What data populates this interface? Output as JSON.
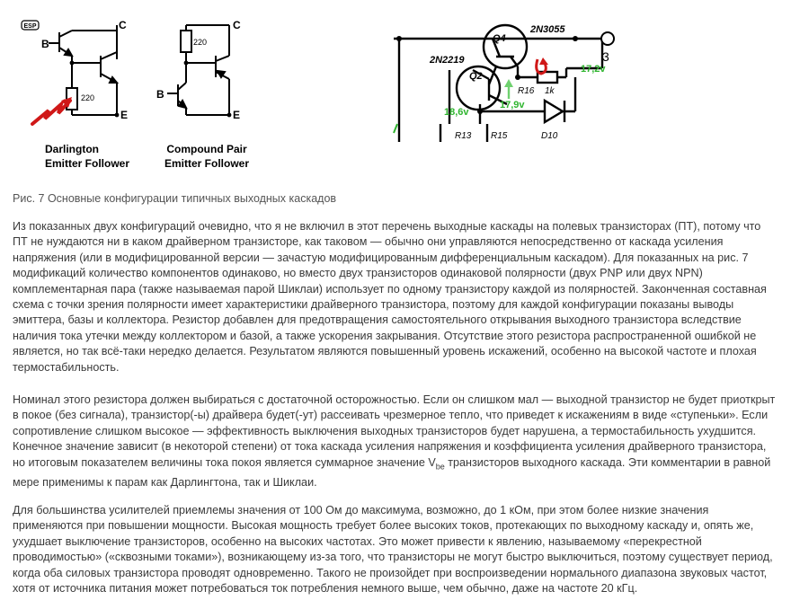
{
  "figure_left": {
    "badge": "ESP",
    "darlington": {
      "label_c": "C",
      "label_b": "B",
      "label_e": "E",
      "resistor_value": "220",
      "title_line1": "Darlington",
      "title_line2": "Emitter Follower"
    },
    "compound": {
      "label_c": "C",
      "label_b": "B",
      "label_e": "E",
      "resistor_value": "220",
      "title_line1": "Compound Pair",
      "title_line2": "Emitter Follower"
    }
  },
  "figure_right": {
    "q4": "Q4",
    "q4_part": "2N3055",
    "q2": "Q2",
    "q2_part": "2N2219",
    "terminal": "3",
    "v_out": "17,2v",
    "v_mid": "17,9v",
    "v_left": "18,6v",
    "r16": "R16",
    "r16_value": "1k",
    "r13": "R13",
    "r15": "R15",
    "d10": "D10"
  },
  "caption": "Рис. 7 Основные конфигурации типичных выходных каскадов",
  "paragraph1": "Из показанных двух конфигураций очевидно, что я не включил в этот перечень выходные каскады на полевых транзисторах (ПТ), потому что ПТ не нуждаются ни в каком драйверном транзисторе, как таковом — обычно они управляются непосредственно от каскада усиления напряжения (или в модифицированной версии — зачастую модифицированным дифференциальным каскадом). Для показанных на рис. 7 модификаций количество компонентов одинаково, но вместо двух транзисторов одинаковой полярности (двух PNP или двух NPN) комплементарная пара (также называемая парой Шиклаи) использует по одному транзистору каждой из полярностей. Законченная составная схема с точки зрения полярности имеет характеристики драйверного транзистора, поэтому для каждой конфигурации показаны выводы эмиттера, базы и коллектора. Резистор добавлен для предотвращения самостоятельного открывания выходного транзистора вследствие наличия тока утечки между коллектором и базой, а также ускорения закрывания. Отсутствие этого резистора распространенной ошибкой не является, но так всё-таки нередко делается. Результатом являются повышенный уровень искажений, особенно на высокой частоте и плохая термостабильность.",
  "paragraph2": {
    "before": "Номинал этого резистора должен выбираться с достаточной осторожностью. Если он слишком мал — выходной транзистор не будет приоткрыт в покое (без сигнала), транзистор(-ы) драйвера будет(-ут) рассеивать чрезмерное тепло, что приведет к искажениям в виде «ступеньки». Если сопротивление слишком высокое — эффективность выключения выходных транзисторов будет нарушена, а термостабильность ухудшится. Конечное значение зависит (в некоторой степени) от тока каскада усиления напряжения и коэффициента усиления драйверного транзистора, но итоговым показателем величины тока покоя является суммарное значение V",
    "subscript": "be",
    "after": " транзисторов выходного каскада. Эти комментарии в равной мере применимы к парам как Дарлингтона, так и Шиклаи."
  },
  "paragraph3": "Для большинства усилителей приемлемы значения от 100 Ом до максимума, возможно, до 1 кОм, при этом более низкие значения применяются при повышении мощности. Высокая мощность требует более высоких токов, протекающих по выходному каскаду и, опять же, ухудшает выключение транзисторов, особенно на высоких частотах. Это может привести к явлению, называемому «перекрестной проводимостью» («сквозными токами»), возникающему из-за того, что транзисторы не могут быстро выключиться, поэтому существует период, когда оба силовых транзистора проводят одновременно. Такого не произойдет при воспроизведении нормального диапазона звуковых частот, хотя от источника питания может потребоваться ток потребления немного выше, чем обычно, даже на частоте 20 кГц."
}
